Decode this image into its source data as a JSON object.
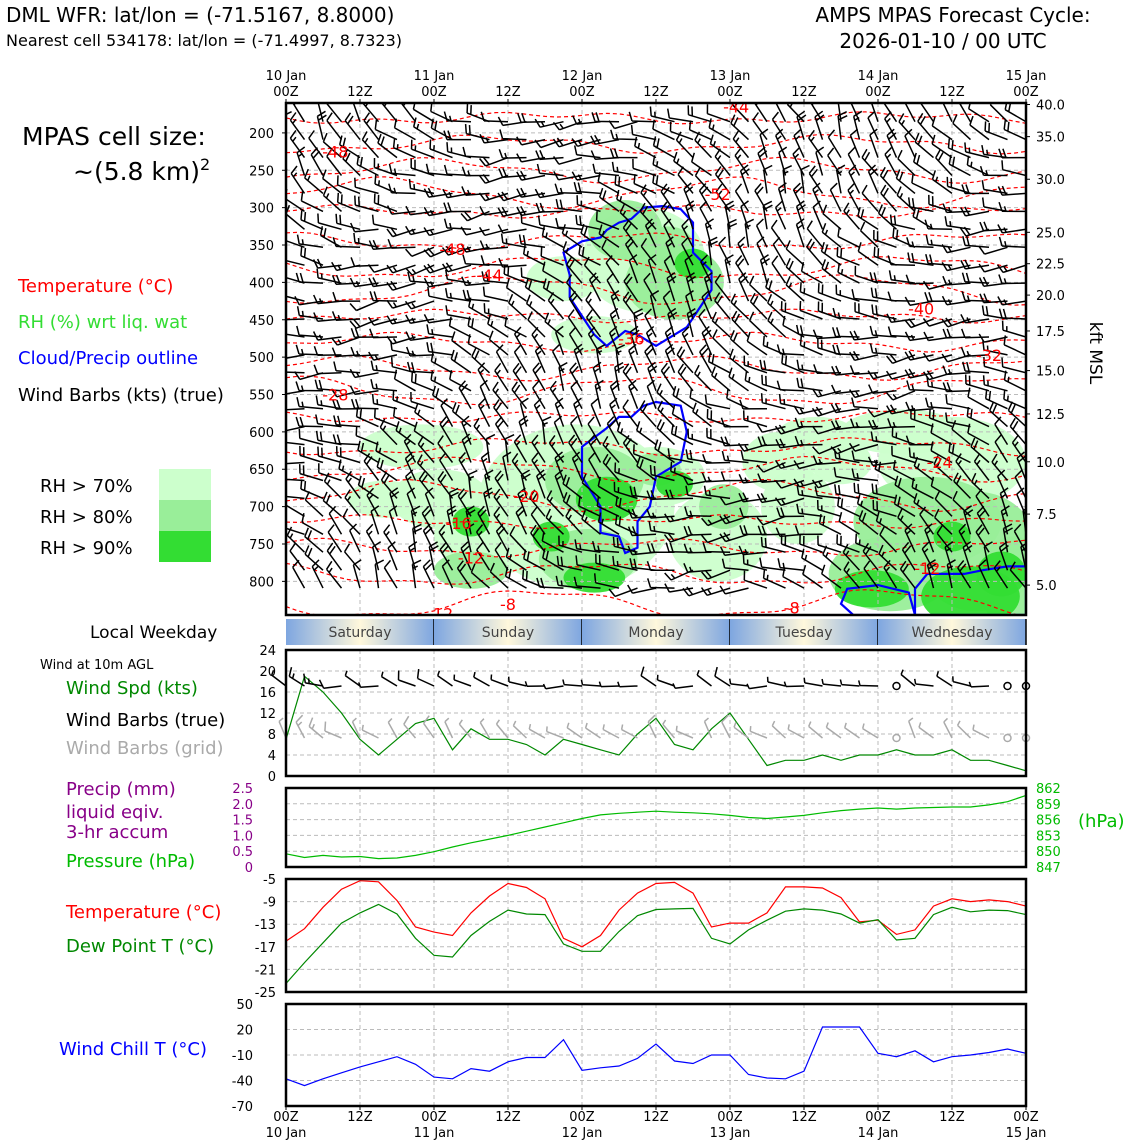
{
  "header": {
    "title_left": "DML WFR: lat/lon = (-71.5167, 8.8000)",
    "subtitle_left": "Nearest cell 534178: lat/lon = (-71.4997, 8.7323)",
    "title_right_1": "AMPS MPAS Forecast Cycle:",
    "title_right_2": "2026-01-10 / 00 UTC"
  },
  "legend": {
    "cell_size_1": "MPAS cell size:",
    "cell_size_2": "~(5.8 km)",
    "cell_size_sup": "2",
    "temperature": "Temperature (°C)",
    "rh": "RH (%) wrt liq. wat",
    "cloud": "Cloud/Precip outline",
    "barbs": "Wind Barbs (kts) (true)",
    "rh70": "RH > 70%",
    "rh80": "RH > 80%",
    "rh90": "RH > 90%",
    "local_weekday": "Local Weekday",
    "wind10m": "Wind at 10m AGL",
    "wind_spd": "Wind Spd (kts)",
    "wind_barbs_true": "Wind Barbs (true)",
    "wind_barbs_grid": "Wind Barbs (grid)",
    "precip_1": "Precip (mm)",
    "precip_2": "liquid eqiv.",
    "precip_3": "3-hr accum",
    "pressure": "Pressure (hPa)",
    "pressure_unit": "(hPa)",
    "temp2": "Temperature (°C)",
    "dewpoint": "Dew Point T (°C)",
    "windchill": "Wind Chill T (°C)",
    "kft": "kft MSL"
  },
  "colors": {
    "temp": "#ff0000",
    "rh": "#33dd33",
    "rh70": "#ccffcc",
    "rh80": "#99ee99",
    "rh90": "#33dd33",
    "cloud": "#0000ff",
    "dew": "#008800",
    "precip": "#880088",
    "pressure": "#00bb00",
    "grid_barb": "#aaaaaa"
  },
  "chart_data": {
    "type": "meteogram",
    "time_hours": [
      0,
      3,
      6,
      9,
      12,
      15,
      18,
      21,
      24,
      27,
      30,
      33,
      36,
      39,
      42,
      45,
      48,
      51,
      54,
      57,
      60,
      63,
      66,
      69,
      72,
      75,
      78,
      81,
      84,
      87,
      90,
      93,
      96,
      99,
      102,
      105,
      108,
      111,
      114,
      117,
      120
    ],
    "top_ticks": [
      {
        "h": 0,
        "t1": "10 Jan",
        "t2": "00Z"
      },
      {
        "h": 12,
        "t1": "",
        "t2": "12Z"
      },
      {
        "h": 24,
        "t1": "11 Jan",
        "t2": "00Z"
      },
      {
        "h": 36,
        "t1": "",
        "t2": "12Z"
      },
      {
        "h": 48,
        "t1": "12 Jan",
        "t2": "00Z"
      },
      {
        "h": 60,
        "t1": "",
        "t2": "12Z"
      },
      {
        "h": 72,
        "t1": "13 Jan",
        "t2": "00Z"
      },
      {
        "h": 84,
        "t1": "",
        "t2": "12Z"
      },
      {
        "h": 96,
        "t1": "14 Jan",
        "t2": "00Z"
      },
      {
        "h": 108,
        "t1": "",
        "t2": "12Z"
      },
      {
        "h": 120,
        "t1": "15 Jan",
        "t2": "00Z"
      }
    ],
    "bottom_ticks": [
      {
        "h": 0,
        "t1": "00Z",
        "t2": "10 Jan"
      },
      {
        "h": 12,
        "t1": "12Z",
        "t2": ""
      },
      {
        "h": 24,
        "t1": "00Z",
        "t2": "11 Jan"
      },
      {
        "h": 36,
        "t1": "12Z",
        "t2": ""
      },
      {
        "h": 48,
        "t1": "00Z",
        "t2": "12 Jan"
      },
      {
        "h": 60,
        "t1": "12Z",
        "t2": ""
      },
      {
        "h": 72,
        "t1": "00Z",
        "t2": "13 Jan"
      },
      {
        "h": 84,
        "t1": "12Z",
        "t2": ""
      },
      {
        "h": 96,
        "t1": "00Z",
        "t2": "14 Jan"
      },
      {
        "h": 108,
        "t1": "12Z",
        "t2": ""
      },
      {
        "h": 120,
        "t1": "00Z",
        "t2": "15 Jan"
      }
    ],
    "profile": {
      "pressure_range": [
        160,
        845
      ],
      "pressure_ticks": [
        200,
        250,
        300,
        350,
        400,
        450,
        500,
        550,
        600,
        650,
        700,
        750,
        800
      ],
      "kft_ticks": [
        {
          "label": "40.0",
          "p": 162
        },
        {
          "label": "35.0",
          "p": 205
        },
        {
          "label": "30.0",
          "p": 262
        },
        {
          "label": "25.0",
          "p": 333
        },
        {
          "label": "22.5",
          "p": 375
        },
        {
          "label": "20.0",
          "p": 417
        },
        {
          "label": "17.5",
          "p": 465
        },
        {
          "label": "15.0",
          "p": 518
        },
        {
          "label": "12.5",
          "p": 576
        },
        {
          "label": "10.0",
          "p": 640
        },
        {
          "label": "7.5",
          "p": 710
        },
        {
          "label": "5.0",
          "p": 805
        }
      ],
      "temp_labels": [
        {
          "text": "-44",
          "h": 73,
          "p": 165
        },
        {
          "text": "-48",
          "h": 8,
          "p": 225
        },
        {
          "text": "-52",
          "h": 70,
          "p": 282
        },
        {
          "text": "-48",
          "h": 27,
          "p": 355
        },
        {
          "text": "-44",
          "h": 33,
          "p": 390
        },
        {
          "text": "-40",
          "h": 103,
          "p": 435
        },
        {
          "text": "-36",
          "h": 56,
          "p": 475
        },
        {
          "text": "-32",
          "h": 114,
          "p": 497
        },
        {
          "text": "-28",
          "h": 8,
          "p": 550
        },
        {
          "text": "-24",
          "h": 106,
          "p": 640
        },
        {
          "text": "-20",
          "h": 39,
          "p": 686
        },
        {
          "text": "-16",
          "h": 28,
          "p": 722
        },
        {
          "text": "-12",
          "h": 30,
          "p": 768
        },
        {
          "text": "-12",
          "h": 104,
          "p": 782
        },
        {
          "text": "-12",
          "h": 25,
          "p": 843
        },
        {
          "text": "-8",
          "h": 36,
          "p": 830
        },
        {
          "text": "-8",
          "h": 82,
          "p": 835
        }
      ]
    },
    "weekday": [
      "Saturday",
      "Sunday",
      "Monday",
      "Tuesday",
      "Wednesday"
    ],
    "wind10m": {
      "ylim": [
        0,
        24
      ],
      "yticks": [
        0,
        4,
        8,
        12,
        16,
        20,
        24
      ],
      "speed_kts": [
        7,
        19,
        16,
        12,
        7,
        4,
        7,
        10,
        11,
        5,
        9,
        7,
        7,
        6,
        4,
        7,
        6,
        5,
        4,
        8,
        11,
        6,
        5,
        9,
        12,
        7,
        2,
        3,
        3,
        4,
        3,
        4,
        4,
        5,
        4,
        4,
        5,
        3,
        3,
        2,
        1
      ]
    },
    "precip_pressure": {
      "precip_ylim": [
        0,
        2.5
      ],
      "precip_ticks": [
        "0",
        "0.5",
        "1.0",
        "1.5",
        "2.0",
        "2.5"
      ],
      "precip_mm": [
        0,
        0,
        0,
        0,
        0,
        0,
        0,
        0,
        0,
        0,
        0,
        0,
        0,
        0,
        0,
        0,
        0,
        0,
        0,
        0,
        0,
        0,
        0,
        0,
        0,
        0,
        0,
        0,
        0,
        0,
        0,
        0,
        0,
        0,
        0,
        0,
        0,
        0,
        0,
        0,
        0
      ],
      "pressure_ylim": [
        847,
        862
      ],
      "pressure_ticks": [
        "847",
        "850",
        "853",
        "856",
        "859",
        "862"
      ],
      "pressure_hpa": [
        849.5,
        848.8,
        849.2,
        848.9,
        849.0,
        848.6,
        848.7,
        849.2,
        849.9,
        850.8,
        851.6,
        852.3,
        853.0,
        853.8,
        854.6,
        855.4,
        856.2,
        856.9,
        857.2,
        857.4,
        857.6,
        857.4,
        857.3,
        857.1,
        856.8,
        856.4,
        856.2,
        856.5,
        856.8,
        857.3,
        857.7,
        858.0,
        858.2,
        858.0,
        858.2,
        858.3,
        858.4,
        858.4,
        858.8,
        859.4,
        860.6
      ]
    },
    "temperature": {
      "ylim": [
        -25,
        -5
      ],
      "yticks": [
        -5,
        -9,
        -13,
        -17,
        -21,
        -25
      ],
      "temp_c": [
        -16,
        -13.8,
        -10,
        -6.8,
        -5.3,
        -5.5,
        -8.8,
        -13.5,
        -14.4,
        -15,
        -11,
        -8,
        -5.8,
        -6.5,
        -8.5,
        -15.5,
        -17,
        -15,
        -10.5,
        -7.5,
        -5.8,
        -5.6,
        -7.5,
        -13.5,
        -12.8,
        -12.8,
        -11,
        -6.4,
        -6.4,
        -6.6,
        -8.3,
        -12.6,
        -12.3,
        -14.8,
        -14,
        -9.8,
        -8.5,
        -9,
        -8.7,
        -9,
        -9.8
      ],
      "dew_c": [
        -23.5,
        -19.8,
        -16.3,
        -12.8,
        -11,
        -9.5,
        -11.2,
        -15.5,
        -18.5,
        -18.8,
        -15,
        -12.5,
        -10.5,
        -11.2,
        -11.3,
        -16.5,
        -17.8,
        -17.8,
        -14.3,
        -11.5,
        -10.4,
        -10.3,
        -10.2,
        -15.5,
        -16.5,
        -14,
        -12.3,
        -10.7,
        -10.3,
        -10.5,
        -11.2,
        -12.8,
        -12.2,
        -15.8,
        -15.5,
        -11.3,
        -10,
        -10.8,
        -10.5,
        -10.6,
        -11.3
      ]
    },
    "windchill": {
      "ylim": [
        -70,
        50
      ],
      "yticks": [
        "50",
        "20",
        "-10",
        "-40",
        "-70"
      ],
      "windchill_c": [
        -38,
        -46,
        -38,
        -31,
        -24,
        -18,
        -12,
        -21,
        -36,
        -38,
        -26,
        -29,
        -18,
        -13,
        -13,
        8,
        -28,
        -25,
        -23,
        -14,
        3,
        -17,
        -20,
        -10,
        -10,
        -33,
        -37,
        -38,
        -29,
        23,
        23,
        23,
        -8,
        -12,
        -5,
        -18,
        -12,
        -10,
        -7,
        -3,
        -8
      ]
    }
  }
}
